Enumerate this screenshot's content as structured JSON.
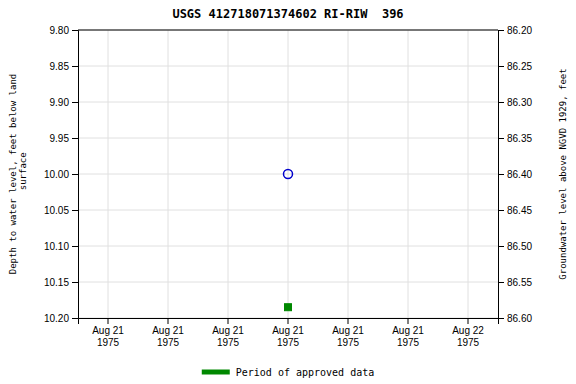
{
  "chart_data": {
    "type": "scatter",
    "title": "USGS 412718071374602 RI-RIW  396",
    "ylabel": "Depth to water level, feet below land\n surface",
    "y2label": "Groundwater level above NGVD 1929, feet",
    "categories": [
      "Aug 21\n1975",
      "Aug 21\n1975",
      "Aug 21\n1975",
      "Aug 21\n1975",
      "Aug 21\n1975",
      "Aug 21\n1975",
      "Aug 22\n1975"
    ],
    "series": [
      {
        "color": "#0000cc",
        "marker": "open-circle",
        "values": [
          null,
          null,
          null,
          10.0,
          null,
          null,
          null
        ]
      },
      {
        "name": "Period of approved data",
        "color": "#008800",
        "marker": "square",
        "values": [
          null,
          null,
          null,
          10.185,
          null,
          null,
          null
        ]
      }
    ],
    "ylim": [
      10.2,
      9.8
    ],
    "yticks": [
      {
        "value": 9.8,
        "label": "9.80"
      },
      9.85,
      {
        "value": 9.9,
        "label": "9.90"
      },
      9.95,
      {
        "value": 10.0,
        "label": "10.00"
      },
      10.05,
      {
        "value": 10.1,
        "label": "10.10"
      },
      10.15,
      {
        "value": 10.2,
        "label": "10.20"
      }
    ],
    "y2lim": [
      86.6,
      86.2
    ],
    "y2ticks": [
      {
        "value": 86.6,
        "label": "86.60"
      },
      86.55,
      {
        "value": 86.5,
        "label": "86.50"
      },
      86.45,
      {
        "value": 86.4,
        "label": "86.40"
      },
      86.35,
      {
        "value": 86.3,
        "label": "86.30"
      },
      86.25,
      {
        "value": 86.2,
        "label": "86.20"
      }
    ],
    "grid": true,
    "legend": "bottom"
  }
}
